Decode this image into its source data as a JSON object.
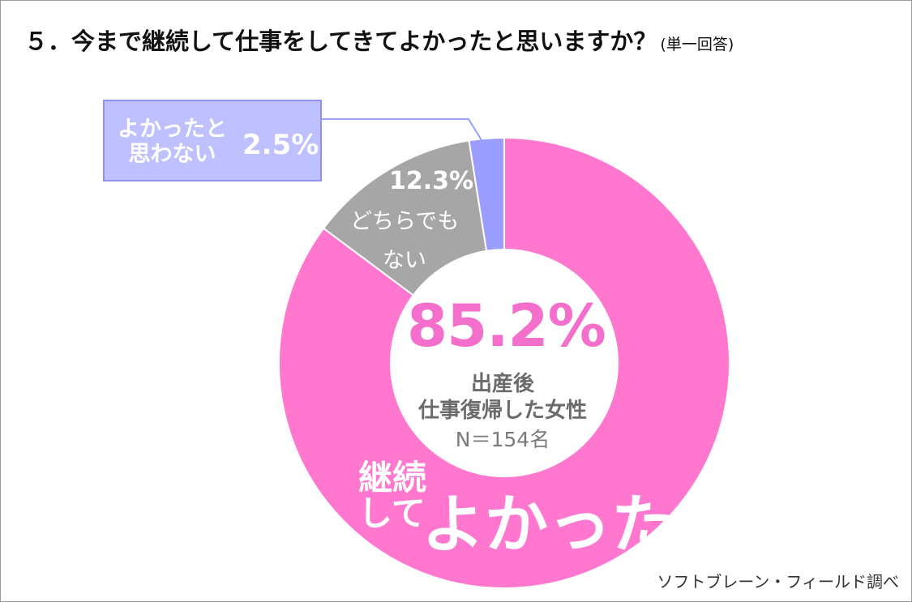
{
  "title": "５．今まで継続して仕事をしてきてよかったと思いますか？",
  "title_note": "(単一回答)",
  "chart_data": {
    "type": "pie",
    "categories": [
      "継続してよかった",
      "どちらでもない",
      "よかったと思わない"
    ],
    "values": [
      85.2,
      12.3,
      2.5
    ],
    "colors": [
      "#ff77cf",
      "#a6a6a6",
      "#9b9dff"
    ],
    "labels": {
      "not_good_l1": "よかったと",
      "not_good_l2": "思わない",
      "not_good_pct": "2.5%",
      "neutral_pct": "12.3%",
      "neutral_l1": "どちらでも",
      "neutral_l2": "ない",
      "good_pct": "85.2%",
      "good_l1": "継続",
      "good_l2": "して",
      "good_l3": "よかった"
    },
    "center": {
      "line1": "出産後",
      "line2": "仕事復帰した女性",
      "n": "N＝154名"
    }
  },
  "source": "ソフトブレーン・フィールド調べ"
}
